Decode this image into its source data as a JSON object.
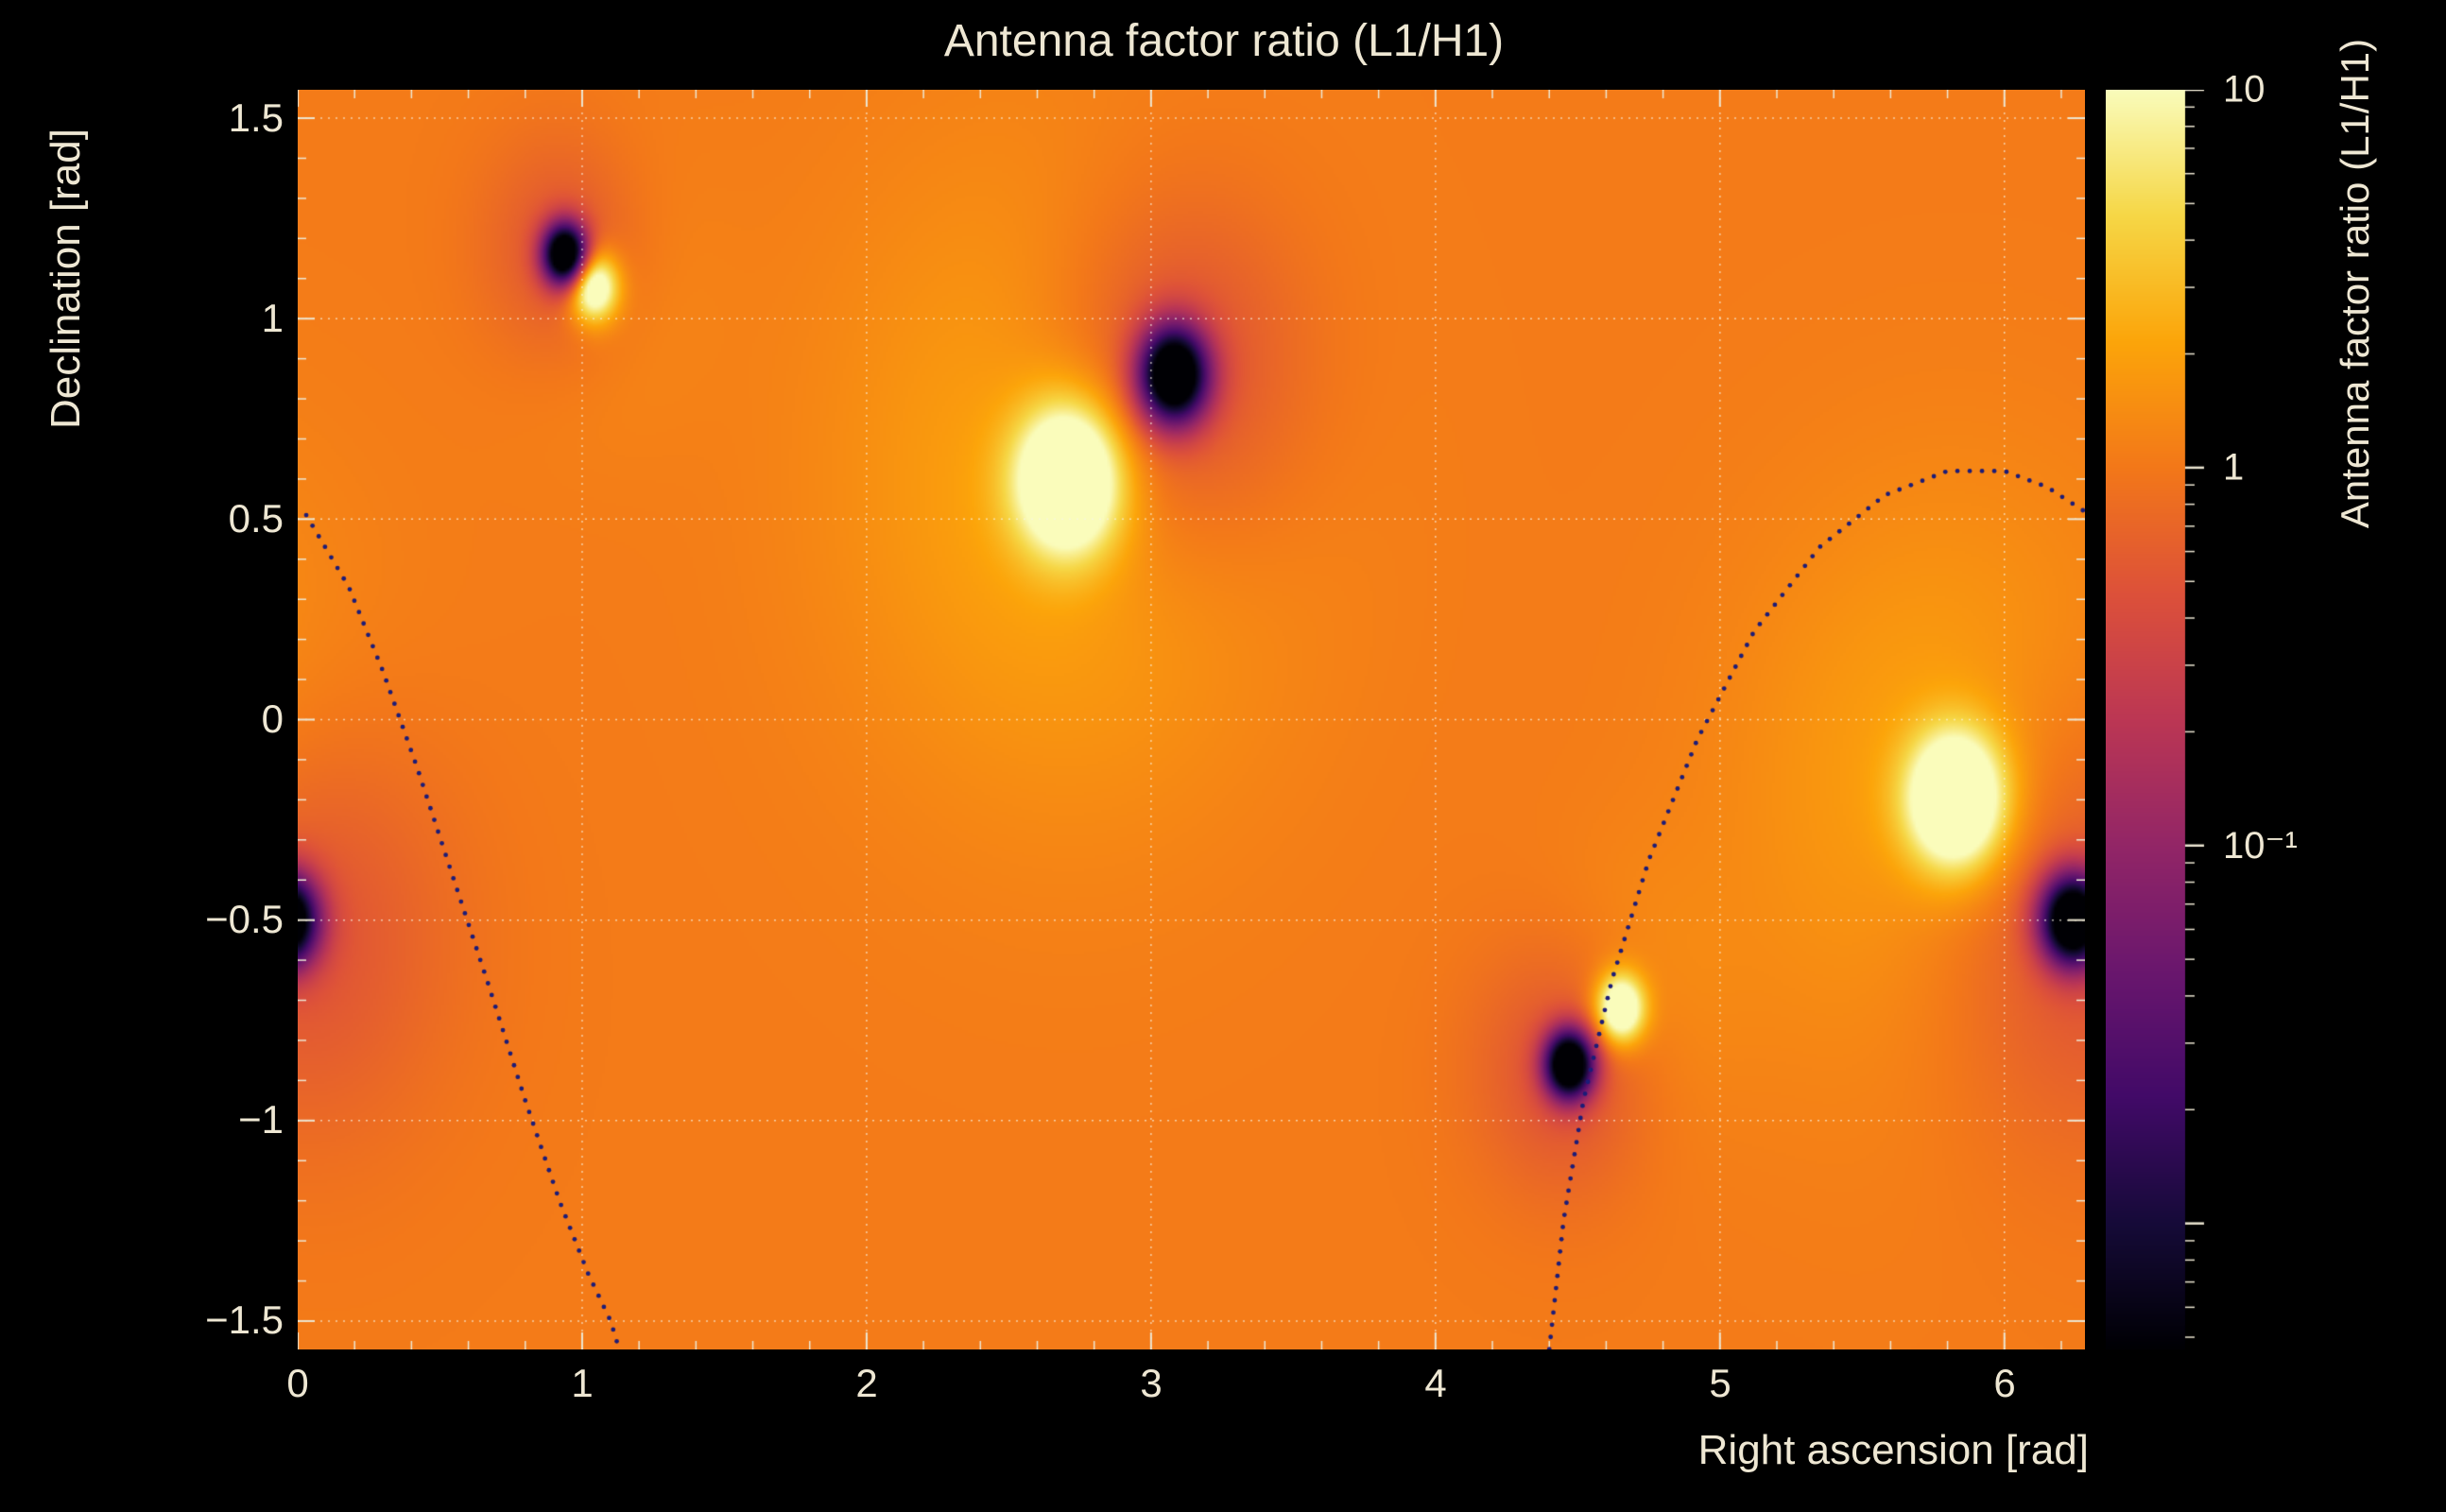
{
  "title": "Antenna factor ratio (L1/H1)",
  "axes": {
    "x_title": "Right ascension [rad]",
    "y_title": "Declination [rad]",
    "x_tick_labels": [
      "0",
      "1",
      "2",
      "3",
      "4",
      "5",
      "6"
    ],
    "y_tick_labels": [
      "1.5",
      "1",
      "0.5",
      "0",
      "−0.5",
      "−1",
      "−1.5"
    ]
  },
  "colorbar": {
    "title": "Antenna factor ratio (L1/H1)",
    "tick_labels": [
      "10",
      "1",
      "10⁻¹"
    ]
  },
  "colors": {
    "background": "#000000",
    "text": "#eee7d3",
    "grid": "#f7f3e4",
    "tick": "#ece6d2",
    "curve_dots": "#1c1c78"
  },
  "chart_data": {
    "type": "heatmap",
    "title": "Antenna factor ratio (L1/H1)",
    "xlabel": "Right ascension [rad]",
    "ylabel": "Declination [rad]",
    "zlabel": "Antenna factor ratio (L1/H1)",
    "xlim": [
      0,
      6.2832
    ],
    "ylim": [
      -1.5708,
      1.5708
    ],
    "x_ticks": [
      0,
      1,
      2,
      3,
      4,
      5,
      6
    ],
    "y_ticks": [
      -1.5,
      -1,
      -0.5,
      0,
      0.5,
      1,
      1.5
    ],
    "grid": "dotted",
    "z_scale": "log",
    "zlim": [
      0.00464,
      10
    ],
    "colorbar_ticks": [
      {
        "value": 10,
        "label": "10"
      },
      {
        "value": 1,
        "label": "1"
      },
      {
        "value": 0.1,
        "label": "10⁻¹"
      }
    ],
    "colormap": "inferno",
    "background_ratio": 1.05,
    "features": {
      "bright_peaks": [
        {
          "ra": 1.04,
          "dec": 1.08,
          "peak_value": 10,
          "core_sigma": 0.06,
          "core_amp": 1.6,
          "halo_sigma": 0.25,
          "halo_amp": 0.18
        },
        {
          "ra": 2.71,
          "dec": 0.6,
          "peak_value": 10,
          "core_sigma": 0.13,
          "core_amp": 1.8,
          "halo_sigma": 0.55,
          "halo_amp": 0.35
        },
        {
          "ra": 4.65,
          "dec": -0.72,
          "peak_value": 10,
          "core_sigma": 0.06,
          "core_amp": 1.6,
          "halo_sigma": 0.25,
          "halo_amp": 0.18
        },
        {
          "ra": 5.83,
          "dec": -0.2,
          "peak_value": 10,
          "core_sigma": 0.12,
          "core_amp": 1.8,
          "halo_sigma": 0.5,
          "halo_amp": 0.35
        }
      ],
      "dark_nulls": [
        {
          "ra": 0.94,
          "dec": 1.16,
          "min_value": 0.005,
          "core_sigma": 0.055,
          "core_amp": 3.0,
          "halo_sigma": 0.2,
          "halo_amp": 0.45
        },
        {
          "ra": 3.08,
          "dec": 0.86,
          "min_value": 0.005,
          "core_sigma": 0.085,
          "core_amp": 3.0,
          "halo_sigma": 0.32,
          "halo_amp": 0.55
        },
        {
          "ra": 4.47,
          "dec": -0.86,
          "min_value": 0.005,
          "core_sigma": 0.06,
          "core_amp": 3.0,
          "halo_sigma": 0.22,
          "halo_amp": 0.45
        },
        {
          "ra": 6.24,
          "dec": -0.5,
          "min_value": 0.005,
          "core_sigma": 0.08,
          "core_amp": 3.0,
          "halo_sigma": 0.38,
          "halo_amp": 0.5
        }
      ]
    },
    "overlay_curves": [
      {
        "name": "dotted-sky-track-west",
        "style": "dotted",
        "points": [
          [
            0.03,
            0.51
          ],
          [
            0.18,
            0.33
          ],
          [
            0.3,
            0.12
          ],
          [
            0.42,
            -0.12
          ],
          [
            0.54,
            -0.38
          ],
          [
            0.67,
            -0.66
          ],
          [
            0.8,
            -0.95
          ],
          [
            0.92,
            -1.2
          ],
          [
            1.02,
            -1.38
          ],
          [
            1.1,
            -1.5
          ],
          [
            1.13,
            -1.57
          ]
        ]
      },
      {
        "name": "dotted-sky-track-east",
        "style": "dotted",
        "points": [
          [
            4.4,
            -1.57
          ],
          [
            4.45,
            -1.25
          ],
          [
            4.52,
            -0.95
          ],
          [
            4.62,
            -0.65
          ],
          [
            4.75,
            -0.35
          ],
          [
            4.92,
            -0.05
          ],
          [
            5.12,
            0.22
          ],
          [
            5.35,
            0.43
          ],
          [
            5.58,
            0.56
          ],
          [
            5.8,
            0.62
          ],
          [
            6.0,
            0.62
          ],
          [
            6.15,
            0.58
          ],
          [
            6.28,
            0.52
          ]
        ]
      }
    ]
  }
}
